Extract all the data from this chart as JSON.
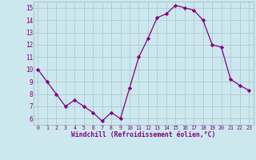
{
  "x": [
    0,
    1,
    2,
    3,
    4,
    5,
    6,
    7,
    8,
    9,
    10,
    11,
    12,
    13,
    14,
    15,
    16,
    17,
    18,
    19,
    20,
    21,
    22,
    23
  ],
  "y": [
    10.0,
    9.0,
    8.0,
    7.0,
    7.5,
    7.0,
    6.5,
    5.8,
    6.5,
    6.0,
    8.5,
    11.0,
    12.5,
    14.2,
    14.5,
    15.2,
    15.0,
    14.8,
    14.0,
    12.0,
    11.8,
    9.2,
    8.7,
    8.3
  ],
  "line_color": "#800080",
  "marker": "D",
  "marker_size": 2.2,
  "bg_color": "#cce8ee",
  "grid_color": "#b0c8d0",
  "xlabel": "Windchill (Refroidissement éolien,°C)",
  "xlabel_color": "#800080",
  "tick_color": "#800080",
  "ylim": [
    5.5,
    15.5
  ],
  "xlim": [
    -0.5,
    23.5
  ],
  "yticks": [
    6,
    7,
    8,
    9,
    10,
    11,
    12,
    13,
    14,
    15
  ],
  "xticks": [
    0,
    1,
    2,
    3,
    4,
    5,
    6,
    7,
    8,
    9,
    10,
    11,
    12,
    13,
    14,
    15,
    16,
    17,
    18,
    19,
    20,
    21,
    22,
    23
  ],
  "xtick_labels": [
    "0",
    "1",
    "2",
    "3",
    "4",
    "5",
    "6",
    "7",
    "8",
    "9",
    "10",
    "11",
    "12",
    "13",
    "14",
    "15",
    "16",
    "17",
    "18",
    "19",
    "20",
    "21",
    "22",
    "23"
  ]
}
